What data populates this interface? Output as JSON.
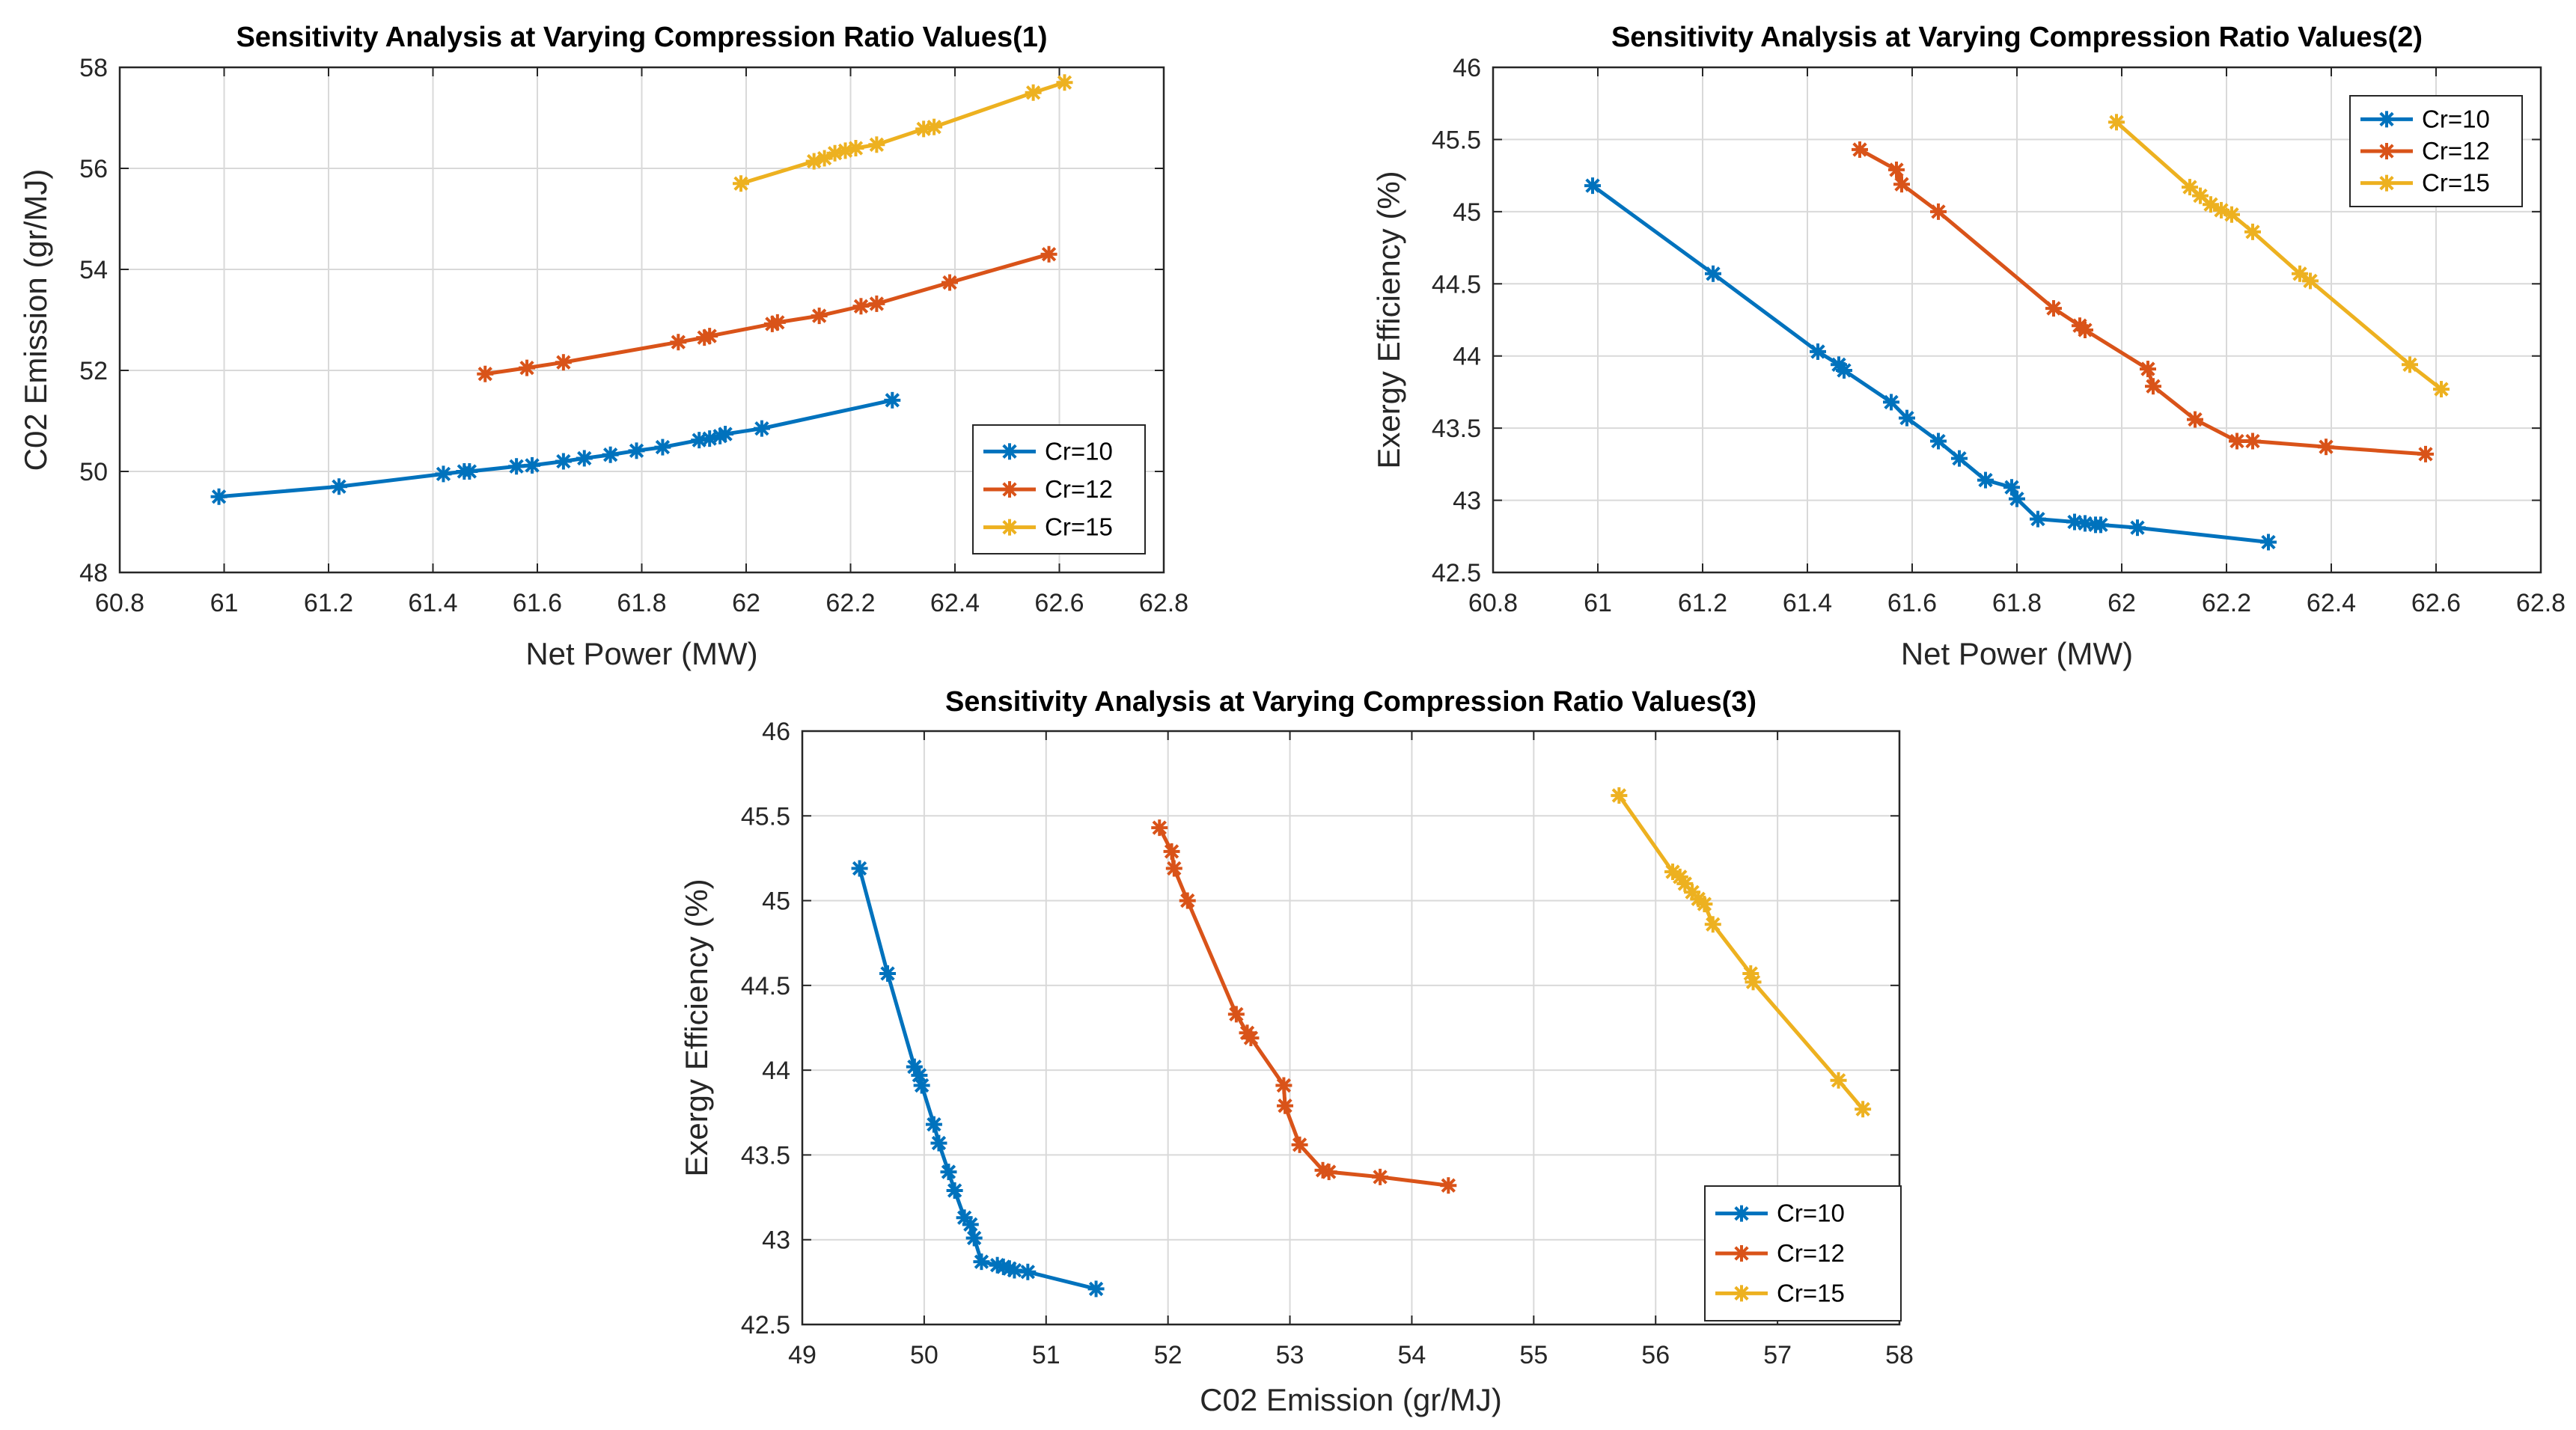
{
  "colors": {
    "cr10": "#0072BD",
    "cr12": "#D95319",
    "cr15": "#EDB120"
  },
  "chart_data": [
    {
      "type": "line",
      "title": "Sensitivity Analysis at Varying Compression Ratio Values(1)",
      "xlabel": "Net Power (MW)",
      "ylabel": "C02 Emission (gr/MJ)",
      "xlim": [
        60.8,
        62.8
      ],
      "ylim": [
        48,
        58
      ],
      "xticks": [
        60.8,
        61,
        61.2,
        61.4,
        61.6,
        61.8,
        62,
        62.2,
        62.4,
        62.6,
        62.8
      ],
      "xtick_labels": [
        "60.8",
        "61",
        "61.2",
        "61.4",
        "61.6",
        "61.8",
        "62",
        "62.2",
        "62.4",
        "62.6",
        "62.8"
      ],
      "yticks": [
        48,
        50,
        52,
        54,
        56,
        58
      ],
      "ytick_labels": [
        "48",
        "50",
        "52",
        "54",
        "56",
        "58"
      ],
      "grid": true,
      "legend_position": "bottom-right",
      "series": [
        {
          "name": "Cr=10",
          "color": "#0072BD",
          "x": [
            60.99,
            61.22,
            61.42,
            61.46,
            61.47,
            61.56,
            61.59,
            61.65,
            61.69,
            61.74,
            61.79,
            61.84,
            61.91,
            61.93,
            61.95,
            61.96,
            62.03,
            62.28
          ],
          "y": [
            49.5,
            49.7,
            49.95,
            50.0,
            50.0,
            50.1,
            50.12,
            50.2,
            50.26,
            50.33,
            50.41,
            50.48,
            50.62,
            50.65,
            50.7,
            50.74,
            50.85,
            51.41
          ]
        },
        {
          "name": "Cr=12",
          "color": "#D95319",
          "x": [
            61.5,
            61.58,
            61.65,
            61.87,
            61.92,
            61.93,
            62.05,
            62.06,
            62.14,
            62.22,
            62.25,
            62.39,
            62.58
          ],
          "y": [
            51.93,
            52.05,
            52.16,
            52.56,
            52.65,
            52.68,
            52.92,
            52.95,
            53.08,
            53.27,
            53.32,
            53.74,
            54.3
          ]
        },
        {
          "name": "Cr=15",
          "color": "#EDB120",
          "x": [
            61.99,
            62.13,
            62.15,
            62.17,
            62.19,
            62.21,
            62.25,
            62.34,
            62.36,
            62.55,
            62.61
          ],
          "y": [
            55.7,
            56.14,
            56.2,
            56.3,
            56.35,
            56.4,
            56.47,
            56.78,
            56.82,
            57.5,
            57.7
          ]
        }
      ]
    },
    {
      "type": "line",
      "title": "Sensitivity Analysis at Varying Compression Ratio Values(2)",
      "xlabel": "Net Power (MW)",
      "ylabel": "Exergy Efficiency (%)",
      "xlim": [
        60.8,
        62.8
      ],
      "ylim": [
        42.5,
        46
      ],
      "xticks": [
        60.8,
        61,
        61.2,
        61.4,
        61.6,
        61.8,
        62,
        62.2,
        62.4,
        62.6,
        62.8
      ],
      "xtick_labels": [
        "60.8",
        "61",
        "61.2",
        "61.4",
        "61.6",
        "61.8",
        "62",
        "62.2",
        "62.4",
        "62.6",
        "62.8"
      ],
      "yticks": [
        42.5,
        43,
        43.5,
        44,
        44.5,
        45,
        45.5,
        46
      ],
      "ytick_labels": [
        "42.5",
        "43",
        "43.5",
        "44",
        "44.5",
        "45",
        "45.5",
        "46"
      ],
      "grid": true,
      "legend_position": "top-right",
      "series": [
        {
          "name": "Cr=10",
          "color": "#0072BD",
          "x": [
            60.99,
            61.22,
            61.42,
            61.46,
            61.47,
            61.56,
            61.59,
            61.65,
            61.69,
            61.74,
            61.79,
            61.8,
            61.84,
            61.91,
            61.93,
            61.95,
            61.96,
            62.03,
            62.28
          ],
          "y": [
            45.18,
            44.57,
            44.03,
            43.94,
            43.9,
            43.68,
            43.57,
            43.41,
            43.29,
            43.14,
            43.09,
            43.01,
            42.87,
            42.85,
            42.84,
            42.83,
            42.83,
            42.81,
            42.71
          ]
        },
        {
          "name": "Cr=12",
          "color": "#D95319",
          "x": [
            61.5,
            61.57,
            61.58,
            61.65,
            61.87,
            61.92,
            61.93,
            62.05,
            62.06,
            62.14,
            62.22,
            62.25,
            62.39,
            62.58
          ],
          "y": [
            45.43,
            45.29,
            45.19,
            45.0,
            44.33,
            44.21,
            44.18,
            43.91,
            43.79,
            43.56,
            43.41,
            43.41,
            43.37,
            43.32
          ]
        },
        {
          "name": "Cr=15",
          "color": "#EDB120",
          "x": [
            61.99,
            62.13,
            62.15,
            62.17,
            62.19,
            62.21,
            62.25,
            62.34,
            62.36,
            62.55,
            62.61
          ],
          "y": [
            45.62,
            45.17,
            45.11,
            45.05,
            45.01,
            44.98,
            44.86,
            44.57,
            44.52,
            43.94,
            43.77
          ]
        }
      ]
    },
    {
      "type": "line",
      "title": "Sensitivity Analysis at Varying Compression Ratio Values(3)",
      "xlabel": "C02 Emission (gr/MJ)",
      "ylabel": "Exergy Efficiency (%)",
      "xlim": [
        49,
        58
      ],
      "ylim": [
        42.5,
        46
      ],
      "xticks": [
        49,
        50,
        51,
        52,
        53,
        54,
        55,
        56,
        57,
        58
      ],
      "xtick_labels": [
        "49",
        "50",
        "51",
        "52",
        "53",
        "54",
        "55",
        "56",
        "57",
        "58"
      ],
      "yticks": [
        42.5,
        43,
        43.5,
        44,
        44.5,
        45,
        45.5,
        46
      ],
      "ytick_labels": [
        "42.5",
        "43",
        "43.5",
        "44",
        "44.5",
        "45",
        "45.5",
        "46"
      ],
      "grid": true,
      "legend_position": "bottom-right",
      "series": [
        {
          "name": "Cr=10",
          "color": "#0072BD",
          "x": [
            49.47,
            49.7,
            49.92,
            49.96,
            49.98,
            50.08,
            50.12,
            50.2,
            50.25,
            50.33,
            50.38,
            50.41,
            50.47,
            50.6,
            50.65,
            50.7,
            50.74,
            50.85,
            51.41
          ],
          "y": [
            45.19,
            44.57,
            44.02,
            43.97,
            43.91,
            43.68,
            43.57,
            43.4,
            43.29,
            43.13,
            43.09,
            43.01,
            42.87,
            42.85,
            42.84,
            42.83,
            42.82,
            42.81,
            42.71
          ]
        },
        {
          "name": "Cr=12",
          "color": "#D95319",
          "x": [
            51.93,
            52.03,
            52.05,
            52.16,
            52.56,
            52.65,
            52.68,
            52.95,
            52.96,
            53.08,
            53.27,
            53.32,
            53.74,
            54.3
          ],
          "y": [
            45.43,
            45.29,
            45.19,
            45.0,
            44.33,
            44.22,
            44.19,
            43.91,
            43.79,
            43.56,
            43.41,
            43.4,
            43.37,
            43.32
          ]
        },
        {
          "name": "Cr=15",
          "color": "#EDB120",
          "x": [
            55.7,
            56.14,
            56.2,
            56.24,
            56.3,
            56.35,
            56.4,
            56.47,
            56.78,
            56.8,
            57.5,
            57.7
          ],
          "y": [
            45.62,
            45.17,
            45.14,
            45.1,
            45.05,
            45.01,
            44.98,
            44.86,
            44.57,
            44.52,
            43.94,
            43.77
          ]
        }
      ]
    }
  ]
}
